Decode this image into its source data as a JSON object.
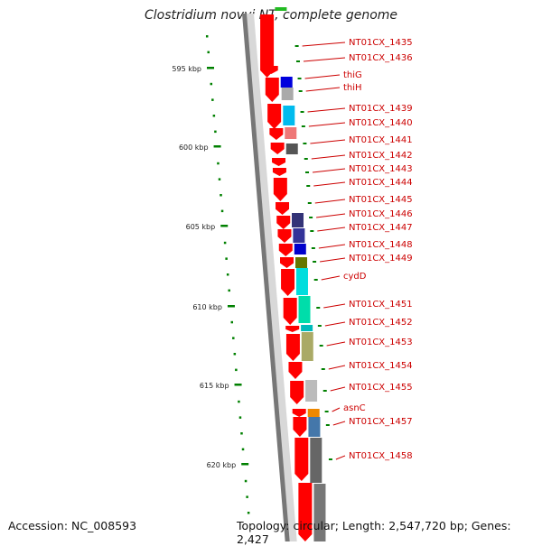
{
  "title": "Clostridium novyi NT, complete genome",
  "accession": "Accession: NC_008593",
  "topology": "Topology: circular; Length: 2,547,720 bp; Genes: 2,427",
  "scale_labels": [
    "595 kbp",
    "600 kbp",
    "605 kbp",
    "610 kbp",
    "615 kbp",
    "620 kbp"
  ],
  "gene_labels": [
    "NT01CX_1435",
    "NT01CX_1436",
    "thiG",
    "thiH",
    "NT01CX_1439",
    "NT01CX_1440",
    "NT01CX_1441",
    "NT01CX_1442",
    "NT01CX_1443",
    "NT01CX_1444",
    "NT01CX_1445",
    "NT01CX_1446",
    "NT01CX_1447",
    "NT01CX_1448",
    "NT01CX_1449",
    "cydD",
    "NT01CX_1451",
    "NT01CX_1452",
    "NT01CX_1453",
    "NT01CX_1454",
    "NT01CX_1455",
    "asnC",
    "NT01CX_1457",
    "NT01CX_1458"
  ],
  "colors": {
    "gene": "#ff0000",
    "label_text": "#cc0000",
    "scale_green": "#008000",
    "backbone_dark": "#777777",
    "backbone_light": "#d8d8d8"
  }
}
